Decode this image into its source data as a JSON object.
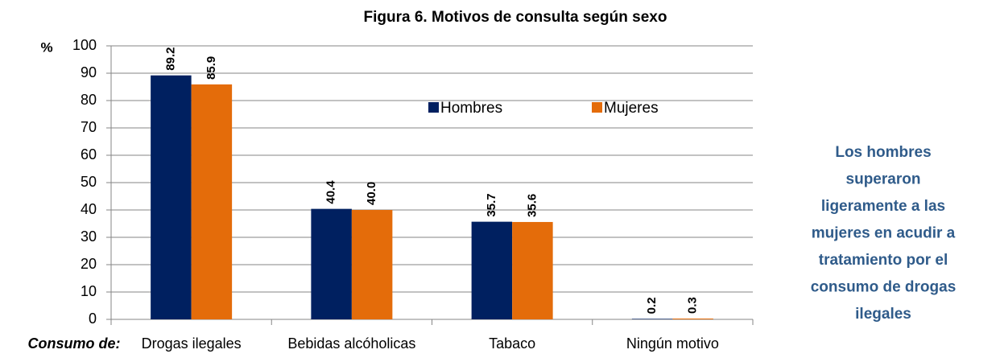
{
  "chart_data": {
    "type": "bar",
    "title": "Figura 6. Motivos de consulta según sexo",
    "y_label": "%",
    "x_label": "Consumo de:",
    "categories": [
      "Drogas ilegales",
      "Bebidas alcóholicas",
      "Tabaco",
      "Ningún motivo"
    ],
    "series": [
      {
        "name": "Hombres",
        "color": "#002060",
        "values": [
          89.2,
          40.4,
          35.7,
          0.2
        ],
        "value_labels": [
          "89.2",
          "40.4",
          "35.7",
          "0.2"
        ]
      },
      {
        "name": "Mujeres",
        "color": "#e46c0a",
        "values": [
          85.9,
          40.0,
          35.6,
          0.3
        ],
        "value_labels": [
          "85.9",
          "40.0",
          "35.6",
          "0.3"
        ]
      }
    ],
    "ylim": [
      0,
      100
    ],
    "yticks": [
      0,
      10,
      20,
      30,
      40,
      50,
      60,
      70,
      80,
      90,
      100
    ],
    "grid": true,
    "legend": "top",
    "annotation": [
      "Los hombres",
      "superaron",
      "ligeramente a las",
      "mujeres en acudir a",
      "tratamiento por el",
      "consumo de drogas",
      "ilegales"
    ]
  }
}
